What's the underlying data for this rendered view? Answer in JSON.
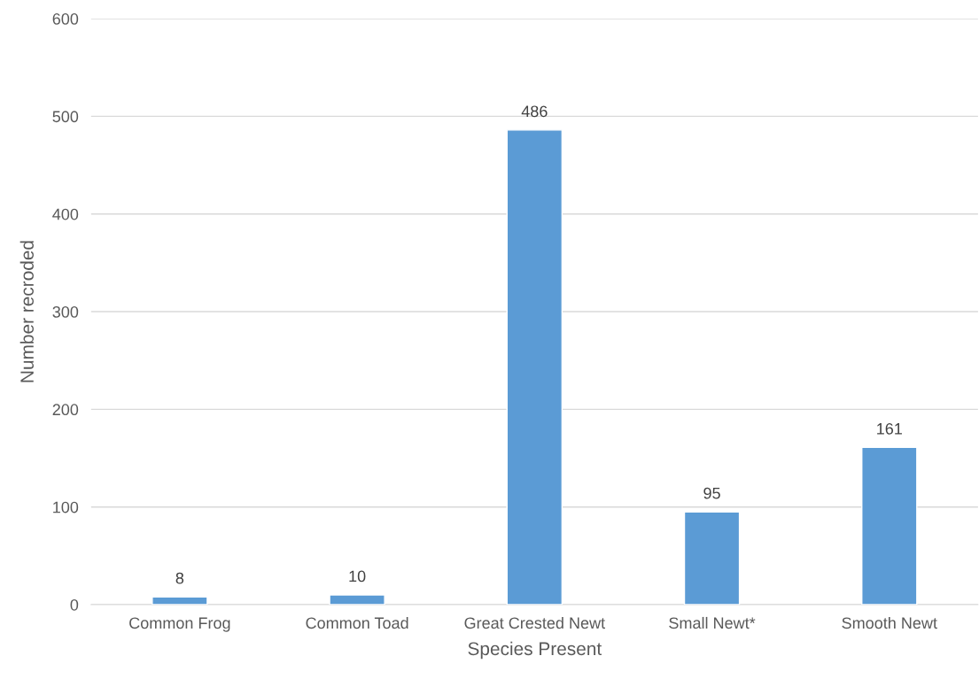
{
  "chart_data": {
    "type": "bar",
    "xlabel": "Species Present",
    "ylabel": "Number recroded",
    "categories": [
      "Common Frog",
      "Common Toad",
      "Great Crested Newt",
      "Small Newt*",
      "Smooth Newt"
    ],
    "values": [
      8,
      10,
      486,
      95,
      161
    ],
    "color": "#5b9bd5",
    "ylim": [
      0,
      600
    ],
    "yticks": [
      0,
      100,
      200,
      300,
      400,
      500,
      600
    ],
    "grid": "y",
    "data_labels": true
  }
}
